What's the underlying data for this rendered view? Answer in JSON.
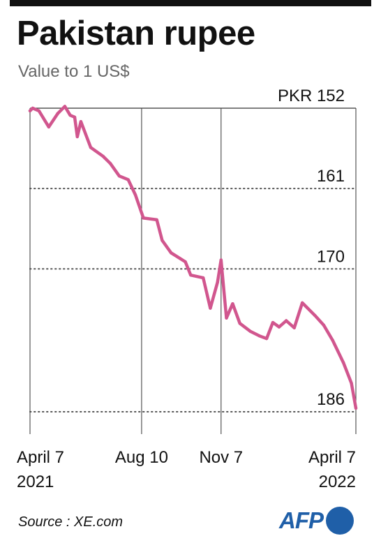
{
  "title": "Pakistan rupee",
  "subtitle": "Value to 1 US$",
  "source": "Source : XE.com",
  "logo": "AFP",
  "colors": {
    "line": "#d1568e",
    "grid": "#555555",
    "logo": "#1f5fa8"
  },
  "chart_data": {
    "type": "line",
    "ylabel_prefix": "PKR",
    "y_ticks": [
      152,
      161,
      170,
      186
    ],
    "y_tick_labels": [
      "PKR 152",
      "161",
      "170",
      "186"
    ],
    "ylim": [
      152,
      186
    ],
    "y_inverted": true,
    "grid": {
      "top_and_value_lines": "dotted",
      "date_lines": "solid"
    },
    "xlim": [
      "2021-04-07",
      "2022-04-07"
    ],
    "x_ticks": [
      {
        "date": "2021-04-07",
        "label_line1": "April 7",
        "label_line2": "2021"
      },
      {
        "date": "2021-08-10",
        "label_line1": "Aug 10",
        "label_line2": ""
      },
      {
        "date": "2021-11-07",
        "label_line1": "Nov 7",
        "label_line2": ""
      },
      {
        "date": "2022-04-07",
        "label_line1": "April 7",
        "label_line2": "2022"
      }
    ],
    "series": [
      {
        "points": [
          [
            "2021-04-07",
            152.3
          ],
          [
            "2021-04-10",
            152.0
          ],
          [
            "2021-04-17",
            152.3
          ],
          [
            "2021-04-28",
            154.1
          ],
          [
            "2021-05-08",
            152.6
          ],
          [
            "2021-05-16",
            151.8
          ],
          [
            "2021-05-22",
            152.8
          ],
          [
            "2021-05-27",
            153.0
          ],
          [
            "2021-05-30",
            155.2
          ],
          [
            "2021-06-03",
            153.5
          ],
          [
            "2021-06-14",
            156.4
          ],
          [
            "2021-06-28",
            157.4
          ],
          [
            "2021-07-06",
            158.2
          ],
          [
            "2021-07-16",
            159.6
          ],
          [
            "2021-07-26",
            160.0
          ],
          [
            "2021-08-03",
            161.7
          ],
          [
            "2021-08-12",
            164.3
          ],
          [
            "2021-08-27",
            164.5
          ],
          [
            "2021-09-02",
            166.8
          ],
          [
            "2021-09-12",
            168.2
          ],
          [
            "2021-09-28",
            169.2
          ],
          [
            "2021-10-04",
            170.7
          ],
          [
            "2021-10-18",
            171.0
          ],
          [
            "2021-10-26",
            174.4
          ],
          [
            "2021-11-03",
            171.5
          ],
          [
            "2021-11-07",
            169.0
          ],
          [
            "2021-11-13",
            175.5
          ],
          [
            "2021-11-20",
            173.9
          ],
          [
            "2021-11-28",
            176.1
          ],
          [
            "2021-12-10",
            177.0
          ],
          [
            "2021-12-20",
            177.5
          ],
          [
            "2021-12-28",
            177.8
          ],
          [
            "2022-01-04",
            176.0
          ],
          [
            "2022-01-11",
            176.5
          ],
          [
            "2022-01-19",
            175.8
          ],
          [
            "2022-01-28",
            176.6
          ],
          [
            "2022-02-06",
            173.8
          ],
          [
            "2022-02-20",
            175.2
          ],
          [
            "2022-03-02",
            176.3
          ],
          [
            "2022-03-12",
            178.0
          ],
          [
            "2022-03-24",
            180.5
          ],
          [
            "2022-04-02",
            182.8
          ],
          [
            "2022-04-07",
            185.6
          ]
        ]
      }
    ]
  }
}
